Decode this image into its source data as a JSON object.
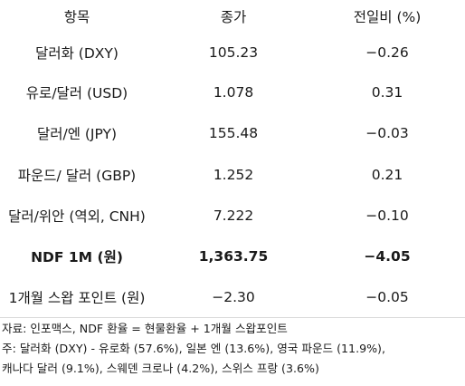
{
  "header": {
    "item": "항목",
    "close": "종가",
    "change": "전일비 (%)"
  },
  "rows": [
    {
      "item": "달러화 (DXY)",
      "close": "105.23",
      "change": "−0.26",
      "bold": false
    },
    {
      "item": "유로/달러 (USD)",
      "close": "1.078",
      "change": "0.31",
      "bold": false
    },
    {
      "item": "달러/엔 (JPY)",
      "close": "155.48",
      "change": "−0.03",
      "bold": false
    },
    {
      "item": "파운드/ 달러 (GBP)",
      "close": "1.252",
      "change": "0.21",
      "bold": false
    },
    {
      "item": "달러/위안 (역외, CNH)",
      "close": "7.222",
      "change": "−0.10",
      "bold": false
    },
    {
      "item": "NDF 1M (원)",
      "close": "1,363.75",
      "change": "−4.05",
      "bold": true
    },
    {
      "item": "1개월 스왑 포인트 (원)",
      "close": "−2.30",
      "change": "−0.05",
      "bold": false
    }
  ],
  "notes": {
    "source": "자료: 인포맥스, NDF 환율 = 현물환율 + 1개월 스왑포인트",
    "note_line1": "주: 달러화 (DXY) - 유로화 (57.6%), 일본 엔 (13.6%), 영국 파운드 (11.9%),",
    "note_line2": "캐나다 달러 (9.1%), 스웨덴 크로나 (4.2%), 스위스 프랑 (3.6%)"
  }
}
